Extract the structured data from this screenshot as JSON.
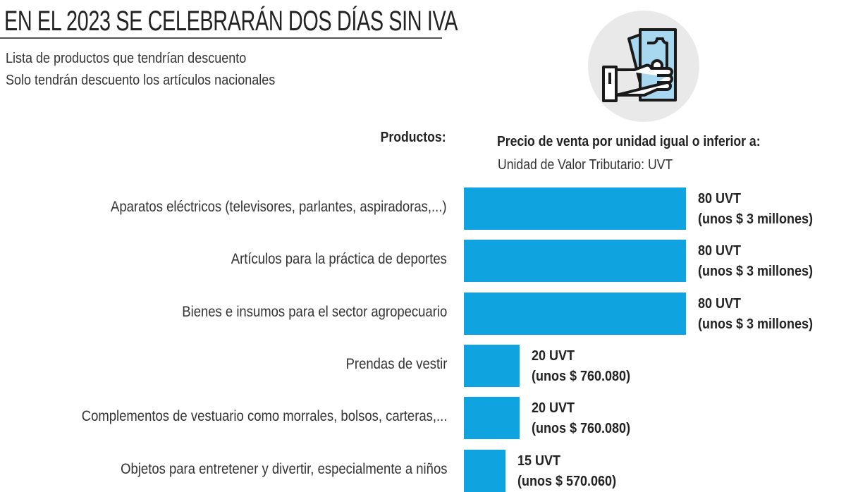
{
  "header": {
    "title": "EN EL 2023 SE CELEBRARÁN DOS DÍAS SIN IVA",
    "subtitle_1": "Lista de productos que tendrían descuento",
    "subtitle_2": "Solo tendrán descuento los artículos nacionales",
    "icon": "hand-holding-money-icon"
  },
  "colors": {
    "bar": "#0fa3df",
    "icon_bg": "#e9e9ea",
    "bill": "#a7d8f0"
  },
  "chart_data": {
    "type": "bar",
    "orientation": "horizontal",
    "category_header": "Productos:",
    "value_header": "Precio de venta por unidad igual o inferior a:",
    "value_subheader": "Unidad de Valor Tributario: UVT",
    "unit": "UVT",
    "xlim": [
      0,
      80
    ],
    "categories": [
      "Aparatos eléctricos (televisores, parlantes, aspiradoras,...)",
      "Artículos para la práctica de deportes",
      "Bienes e insumos para el sector agropecuario",
      "Prendas de vestir",
      "Complementos de vestuario como morrales, bolsos, carteras,...",
      "Objetos para entretener y divertir, especialmente a niños"
    ],
    "values": [
      80,
      80,
      80,
      20,
      20,
      15
    ],
    "value_labels": [
      "80 UVT",
      "80 UVT",
      "80 UVT",
      "20 UVT",
      "20 UVT",
      "15 UVT"
    ],
    "peso_labels": [
      "(unos $ 3 millones)",
      "(unos $ 3 millones)",
      "(unos $ 3 millones)",
      "(unos $ 760.080)",
      "(unos $ 760.080)",
      "(unos $ 570.060)"
    ]
  }
}
